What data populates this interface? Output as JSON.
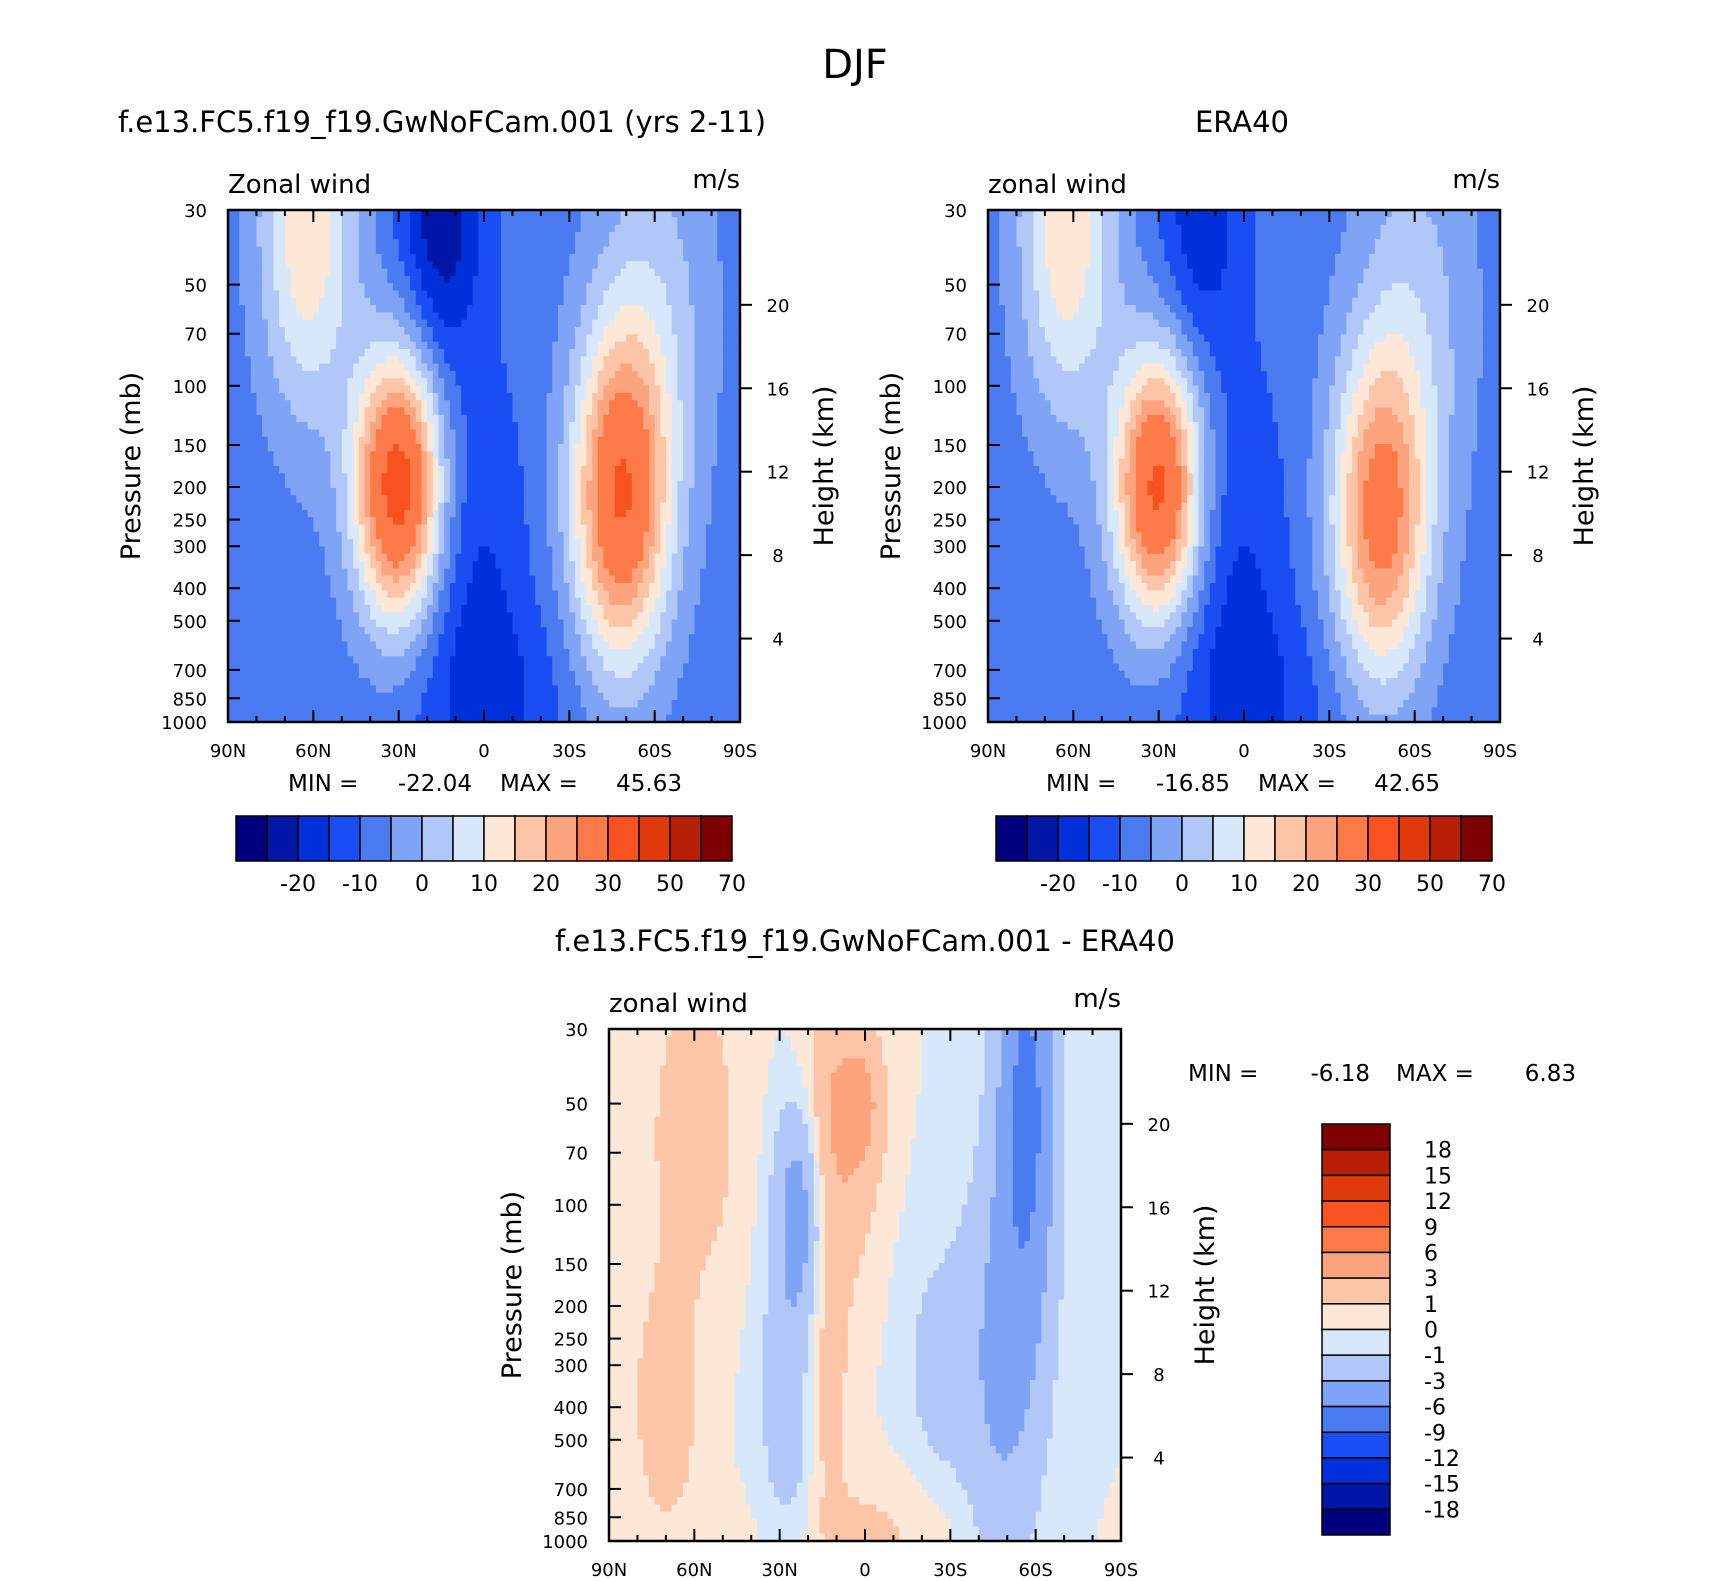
{
  "main_title": "DJF",
  "colors": {
    "model_scale": [
      "#00007f",
      "#0016a6",
      "#0030d9",
      "#1a4df2",
      "#4a7bf0",
      "#7fa3f5",
      "#b0c7f8",
      "#d6e8fa",
      "#fde8d8",
      "#fdc5a7",
      "#fca47e",
      "#fb7a48",
      "#f7521f",
      "#e03a0c",
      "#b81f06",
      "#7f0000"
    ],
    "diff_scale": [
      "#7f0000",
      "#b81f06",
      "#e03a0c",
      "#f7521f",
      "#fb7a48",
      "#fca47e",
      "#fdc5a7",
      "#fde8d8",
      "#d6e8fa",
      "#b0c7f8",
      "#7fa3f5",
      "#4a7bf0",
      "#1a4df2",
      "#0030d9",
      "#0016a6",
      "#00007f"
    ]
  },
  "chart_data": [
    {
      "type": "heatmap",
      "id": "model",
      "title": "f.e13.FC5.f19_f19.GwNoFCam.001 (yrs 2-11)",
      "left_string": "Zonal wind",
      "right_string": "m/s",
      "xlabel": "",
      "ylabel": "Pressure (mb)",
      "ylabel_right": "Height (km)",
      "x_ticks": [
        "90N",
        "60N",
        "30N",
        "0",
        "30S",
        "60S",
        "90S"
      ],
      "x_range": [
        90,
        -90
      ],
      "y_ticks": [
        30,
        50,
        70,
        100,
        150,
        200,
        250,
        300,
        400,
        500,
        700,
        850,
        1000
      ],
      "y_range": [
        30,
        1000
      ],
      "y_scale": "log",
      "height_ticks": [
        20,
        16,
        12,
        8,
        4
      ],
      "min_label": "MIN = ",
      "min_value": "-22.04",
      "max_label": "MAX = ",
      "max_value": "45.63",
      "colorbar_labels": [
        "-20",
        "-10",
        "0",
        "10",
        "20",
        "30",
        "50",
        "70"
      ],
      "jets": [
        {
          "lat": 30,
          "p": 200,
          "peak": 45.6
        },
        {
          "lat": -48,
          "p": 220,
          "peak": 38
        }
      ],
      "minimum": {
        "lat": 15,
        "p": 30,
        "value": -22.0
      }
    },
    {
      "type": "heatmap",
      "id": "obs",
      "title": "ERA40",
      "left_string": "zonal wind",
      "right_string": "m/s",
      "xlabel": "",
      "ylabel": "Pressure (mb)",
      "ylabel_right": "Height (km)",
      "x_ticks": [
        "90N",
        "60N",
        "30N",
        "0",
        "30S",
        "60S",
        "90S"
      ],
      "x_range": [
        90,
        -90
      ],
      "y_ticks": [
        30,
        50,
        70,
        100,
        150,
        200,
        250,
        300,
        400,
        500,
        700,
        850,
        1000
      ],
      "y_range": [
        30,
        1000
      ],
      "y_scale": "log",
      "height_ticks": [
        20,
        16,
        12,
        8,
        4
      ],
      "min_label": "MIN = ",
      "min_value": "-16.85",
      "max_label": "MAX = ",
      "max_value": "42.65",
      "colorbar_labels": [
        "-20",
        "-10",
        "0",
        "10",
        "20",
        "30",
        "50",
        "70"
      ],
      "jets": [
        {
          "lat": 30,
          "p": 200,
          "peak": 42.6
        },
        {
          "lat": -48,
          "p": 250,
          "peak": 32
        }
      ],
      "minimum": {
        "lat": 15,
        "p": 30,
        "value": -16.8
      }
    },
    {
      "type": "heatmap",
      "id": "diff",
      "title": "f.e13.FC5.f19_f19.GwNoFCam.001 - ERA40",
      "left_string": "zonal wind",
      "right_string": "m/s",
      "xlabel": "",
      "ylabel": "Pressure (mb)",
      "ylabel_right": "Height (km)",
      "x_ticks": [
        "90N",
        "60N",
        "30N",
        "0",
        "30S",
        "60S",
        "90S"
      ],
      "x_range": [
        90,
        -90
      ],
      "y_ticks": [
        30,
        50,
        70,
        100,
        150,
        200,
        250,
        300,
        400,
        500,
        700,
        850,
        1000
      ],
      "y_range": [
        30,
        1000
      ],
      "y_scale": "log",
      "height_ticks": [
        20,
        16,
        12,
        8,
        4
      ],
      "min_label": "MIN = ",
      "min_value": "-6.18",
      "max_label": "MAX = ",
      "max_value": "6.83",
      "colorbar_labels": [
        "18",
        "15",
        "12",
        "9",
        "6",
        "3",
        "1",
        "0",
        "-1",
        "-3",
        "-6",
        "-9",
        "-12",
        "-15",
        "-18"
      ],
      "extrema": {
        "max_lat": -57,
        "max_p": 50,
        "max_value": 6.8,
        "min_lat": 0,
        "min_p": 50,
        "min_value": -6.2
      }
    }
  ]
}
